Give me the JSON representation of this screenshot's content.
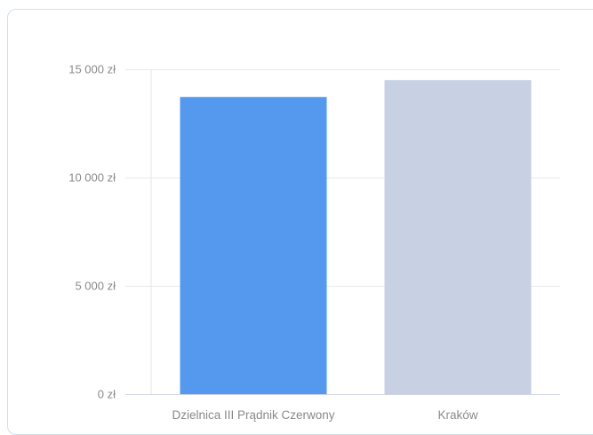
{
  "chart_data": {
    "type": "bar",
    "categories": [
      "Dzielnica III Prądnik Czerwony",
      "Kraków"
    ],
    "values": [
      13720,
      14500
    ],
    "colors": [
      "#5599ee",
      "#c8d1e3"
    ],
    "ylim": [
      0,
      15000
    ],
    "yticks": [
      {
        "value": 0,
        "label": "0 zł"
      },
      {
        "value": 5000,
        "label": "5 000 zł"
      },
      {
        "value": 10000,
        "label": "10 000 zł"
      },
      {
        "value": 15000,
        "label": "15 000 zł"
      }
    ],
    "grid": true,
    "title": "",
    "xlabel": "",
    "ylabel": ""
  }
}
